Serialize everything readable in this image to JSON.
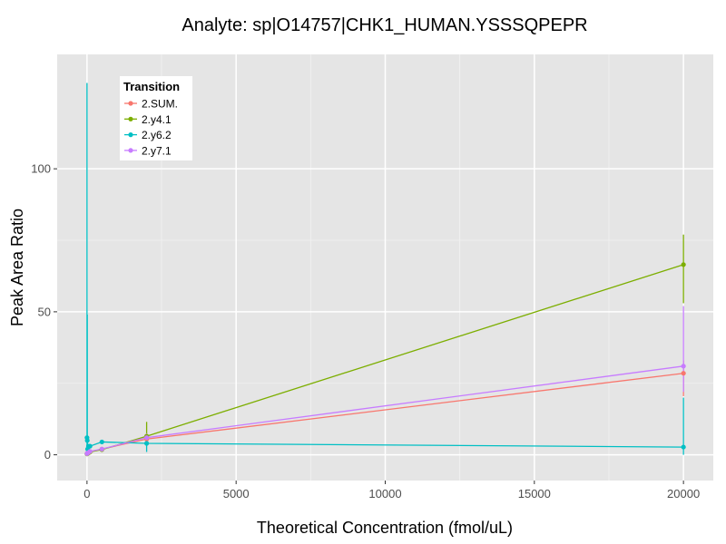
{
  "chart_data": {
    "type": "line",
    "title": "Analyte: sp|O14757|CHK1_HUMAN.YSSSQPEPR",
    "xlabel": "Theoretical Concentration (fmol/uL)",
    "ylabel": "Peak Area Ratio",
    "xlim": [
      -1000,
      21000
    ],
    "ylim": [
      -9,
      140
    ],
    "x_ticks": [
      0,
      5000,
      10000,
      15000,
      20000
    ],
    "y_ticks": [
      0,
      50,
      100
    ],
    "grid": true,
    "legend": {
      "title": "Transition",
      "position": "top-left"
    },
    "background": "#e5e5e5",
    "series": [
      {
        "name": "2.SUM.",
        "color": "#f8766d",
        "points": [
          {
            "x": 0,
            "y": 0.4
          },
          {
            "x": 10,
            "y": 0.5
          },
          {
            "x": 20,
            "y": 0.6
          },
          {
            "x": 50,
            "y": 0.8
          },
          {
            "x": 100,
            "y": 1.0
          },
          {
            "x": 500,
            "y": 2.0
          },
          {
            "x": 2000,
            "y": 5.5
          },
          {
            "x": 20000,
            "y": 28.5
          }
        ],
        "error_bars": [
          {
            "x": 2000,
            "lo": 4.0,
            "hi": 7.0
          },
          {
            "x": 20000,
            "lo": 20.5,
            "hi": 33.0
          }
        ]
      },
      {
        "name": "2.y4.1",
        "color": "#7cae00",
        "points": [
          {
            "x": 0,
            "y": 0.3
          },
          {
            "x": 10,
            "y": 0.4
          },
          {
            "x": 20,
            "y": 0.5
          },
          {
            "x": 50,
            "y": 0.6
          },
          {
            "x": 100,
            "y": 1.0
          },
          {
            "x": 500,
            "y": 1.8
          },
          {
            "x": 2000,
            "y": 6.5
          },
          {
            "x": 20000,
            "y": 66.5
          }
        ],
        "error_bars": [
          {
            "x": 2000,
            "lo": 4.0,
            "hi": 11.5
          },
          {
            "x": 20000,
            "lo": 53.0,
            "hi": 77.0
          }
        ]
      },
      {
        "name": "2.y6.2",
        "color": "#00bfc4",
        "points": [
          {
            "x": 0,
            "y": 6.0
          },
          {
            "x": 10,
            "y": 5.0
          },
          {
            "x": 20,
            "y": 2.0
          },
          {
            "x": 50,
            "y": 3.0
          },
          {
            "x": 100,
            "y": 3.0
          },
          {
            "x": 500,
            "y": 4.5
          },
          {
            "x": 2000,
            "y": 4.0
          },
          {
            "x": 20000,
            "y": 2.7
          }
        ],
        "error_bars": [
          {
            "x": 0,
            "lo": 0,
            "hi": 130
          },
          {
            "x": 10,
            "lo": 0,
            "hi": 49
          },
          {
            "x": 2000,
            "lo": 1.0,
            "hi": 6.0
          },
          {
            "x": 20000,
            "lo": 0,
            "hi": 20.0
          }
        ]
      },
      {
        "name": "2.y7.1",
        "color": "#c77cff",
        "points": [
          {
            "x": 0,
            "y": 0.4
          },
          {
            "x": 10,
            "y": 0.5
          },
          {
            "x": 20,
            "y": 0.6
          },
          {
            "x": 50,
            "y": 0.8
          },
          {
            "x": 100,
            "y": 1.2
          },
          {
            "x": 500,
            "y": 2.0
          },
          {
            "x": 2000,
            "y": 6.0
          },
          {
            "x": 20000,
            "y": 31.0
          }
        ],
        "error_bars": [
          {
            "x": 2000,
            "lo": 5.0,
            "hi": 7.5
          },
          {
            "x": 20000,
            "lo": 22.0,
            "hi": 52.0
          }
        ]
      }
    ]
  }
}
